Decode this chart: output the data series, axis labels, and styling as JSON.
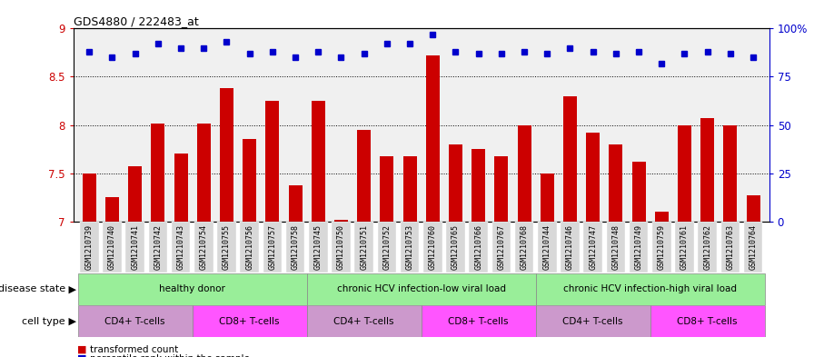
{
  "title": "GDS4880 / 222483_at",
  "samples": [
    "GSM1210739",
    "GSM1210740",
    "GSM1210741",
    "GSM1210742",
    "GSM1210743",
    "GSM1210754",
    "GSM1210755",
    "GSM1210756",
    "GSM1210757",
    "GSM1210758",
    "GSM1210745",
    "GSM1210750",
    "GSM1210751",
    "GSM1210752",
    "GSM1210753",
    "GSM1210760",
    "GSM1210765",
    "GSM1210766",
    "GSM1210767",
    "GSM1210768",
    "GSM1210744",
    "GSM1210746",
    "GSM1210747",
    "GSM1210748",
    "GSM1210749",
    "GSM1210759",
    "GSM1210761",
    "GSM1210762",
    "GSM1210763",
    "GSM1210764"
  ],
  "bar_values": [
    7.5,
    7.25,
    7.57,
    8.01,
    7.7,
    8.01,
    8.38,
    7.85,
    8.25,
    7.37,
    8.25,
    7.02,
    7.95,
    7.68,
    7.68,
    8.72,
    7.8,
    7.75,
    7.68,
    8.0,
    7.5,
    8.3,
    7.92,
    7.8,
    7.62,
    7.1,
    8.0,
    8.07,
    8.0,
    7.27
  ],
  "dot_values": [
    88,
    85,
    87,
    92,
    90,
    90,
    93,
    87,
    88,
    85,
    88,
    85,
    87,
    92,
    92,
    97,
    88,
    87,
    87,
    88,
    87,
    90,
    88,
    87,
    88,
    82,
    87,
    88,
    87,
    85
  ],
  "ylim_left": [
    7.0,
    9.0
  ],
  "ylim_right": [
    0,
    100
  ],
  "yticks_left": [
    7.0,
    7.5,
    8.0,
    8.5,
    9.0
  ],
  "ytick_labels_left": [
    "7",
    "7.5",
    "8",
    "8.5",
    "9"
  ],
  "yticks_right": [
    0,
    25,
    50,
    75,
    100
  ],
  "ytick_labels_right": [
    "0",
    "25",
    "50",
    "75",
    "100%"
  ],
  "bar_color": "#cc0000",
  "dot_color": "#0000cc",
  "plot_bg_color": "#f0f0f0",
  "fig_bg_color": "#ffffff",
  "xtick_bg_color": "#d8d8d8",
  "disease_color": "#99ee99",
  "cd4_color": "#cc99cc",
  "cd8_color": "#ff55ff",
  "disease_groups": [
    {
      "label": "healthy donor",
      "start": 0,
      "end": 9
    },
    {
      "label": "chronic HCV infection-low viral load",
      "start": 10,
      "end": 19
    },
    {
      "label": "chronic HCV infection-high viral load",
      "start": 20,
      "end": 29
    }
  ],
  "cell_type_groups": [
    {
      "label": "CD4+ T-cells",
      "start": 0,
      "end": 4
    },
    {
      "label": "CD8+ T-cells",
      "start": 5,
      "end": 9
    },
    {
      "label": "CD4+ T-cells",
      "start": 10,
      "end": 14
    },
    {
      "label": "CD8+ T-cells",
      "start": 15,
      "end": 19
    },
    {
      "label": "CD4+ T-cells",
      "start": 20,
      "end": 24
    },
    {
      "label": "CD8+ T-cells",
      "start": 25,
      "end": 29
    }
  ],
  "disease_label": "disease state",
  "cell_type_label": "cell type"
}
